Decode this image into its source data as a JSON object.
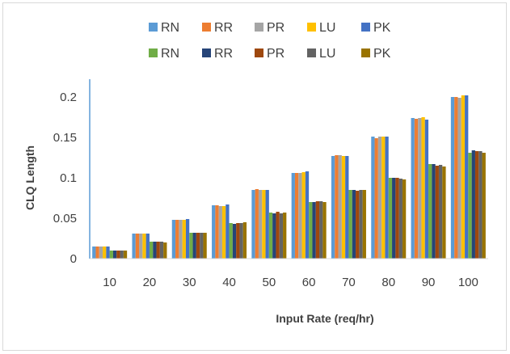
{
  "chart_data": {
    "type": "bar",
    "title": "",
    "xlabel": "Input Rate (req/hr)",
    "ylabel": "CLQ Length",
    "ylim": [
      0,
      0.2
    ],
    "yticks": [
      "0",
      "0.05",
      "0.1",
      "0.15",
      "0.2"
    ],
    "categories": [
      "10",
      "20",
      "30",
      "40",
      "50",
      "60",
      "70",
      "80",
      "90",
      "100"
    ],
    "legend_position": "top",
    "grid": false,
    "series": [
      {
        "name": "RN",
        "color": "#5b9bd5",
        "values": [
          0.015,
          0.031,
          0.048,
          0.066,
          0.085,
          0.106,
          0.127,
          0.151,
          0.174,
          0.2
        ]
      },
      {
        "name": "RR",
        "color": "#ed7d31",
        "values": [
          0.015,
          0.031,
          0.048,
          0.066,
          0.086,
          0.106,
          0.128,
          0.149,
          0.173,
          0.2
        ]
      },
      {
        "name": "PR",
        "color": "#a5a5a5",
        "values": [
          0.015,
          0.031,
          0.048,
          0.065,
          0.085,
          0.106,
          0.128,
          0.151,
          0.174,
          0.199
        ]
      },
      {
        "name": "LU",
        "color": "#ffc000",
        "values": [
          0.015,
          0.031,
          0.048,
          0.065,
          0.085,
          0.107,
          0.127,
          0.151,
          0.175,
          0.202
        ]
      },
      {
        "name": "PK",
        "color": "#4472c4",
        "values": [
          0.015,
          0.031,
          0.049,
          0.067,
          0.085,
          0.108,
          0.127,
          0.151,
          0.172,
          0.202
        ]
      },
      {
        "name": "RN",
        "color": "#70ad47",
        "values": [
          0.01,
          0.021,
          0.032,
          0.044,
          0.057,
          0.07,
          0.085,
          0.1,
          0.117,
          0.131
        ]
      },
      {
        "name": "RR",
        "color": "#264478",
        "values": [
          0.01,
          0.021,
          0.032,
          0.043,
          0.056,
          0.07,
          0.085,
          0.1,
          0.117,
          0.134
        ]
      },
      {
        "name": "PR",
        "color": "#9e480e",
        "values": [
          0.01,
          0.021,
          0.032,
          0.044,
          0.058,
          0.071,
          0.084,
          0.1,
          0.115,
          0.133
        ]
      },
      {
        "name": "LU",
        "color": "#636363",
        "values": [
          0.01,
          0.021,
          0.032,
          0.044,
          0.056,
          0.071,
          0.085,
          0.099,
          0.116,
          0.133
        ]
      },
      {
        "name": "PK",
        "color": "#997300",
        "values": [
          0.01,
          0.02,
          0.032,
          0.045,
          0.057,
          0.07,
          0.085,
          0.098,
          0.114,
          0.131
        ]
      }
    ]
  }
}
